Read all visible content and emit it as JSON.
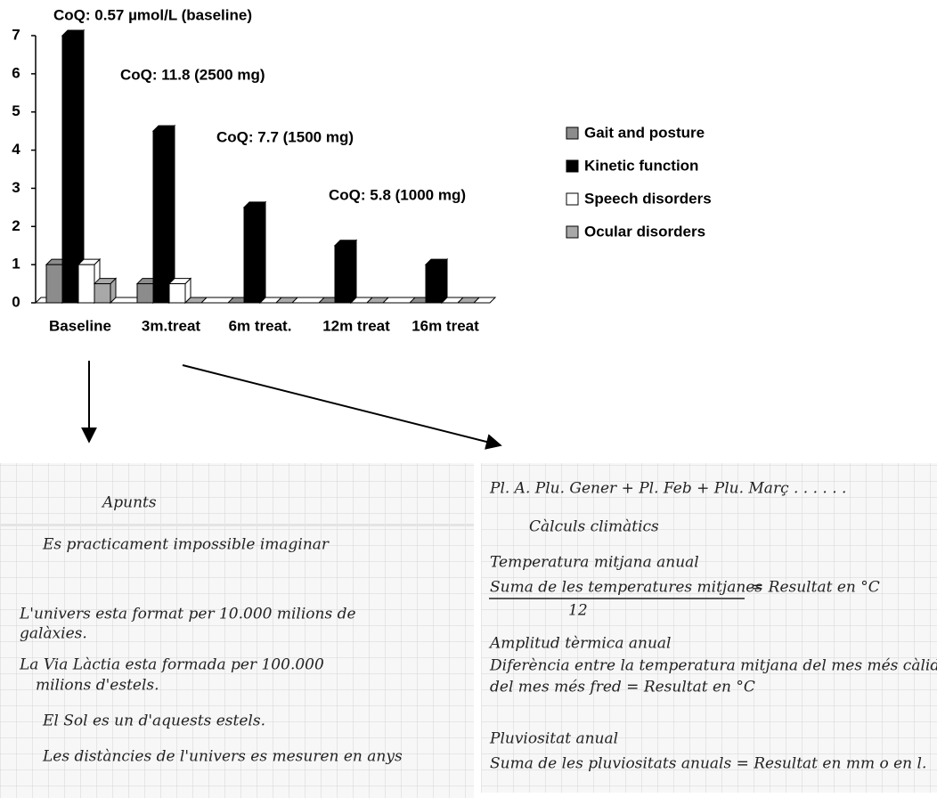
{
  "chart_data": {
    "type": "bar",
    "categories": [
      "Baseline",
      "3m.treat",
      "6m treat.",
      "12m treat",
      "16m treat"
    ],
    "series": [
      {
        "name": "Gait and posture",
        "color": "#8c8c8c",
        "values": [
          1,
          0.5,
          0,
          0,
          0
        ]
      },
      {
        "name": "Kinetic function",
        "color": "#000000",
        "values": [
          7,
          4.5,
          2.5,
          1.5,
          1
        ]
      },
      {
        "name": "Speech disorders",
        "color": "#ffffff",
        "values": [
          1,
          0.5,
          0,
          0,
          0
        ]
      },
      {
        "name": "Ocular disorders",
        "color": "#a8a8a8",
        "values": [
          0.5,
          0,
          0,
          0,
          0
        ]
      }
    ],
    "ylim": [
      0,
      7
    ],
    "yticks": [
      0,
      1,
      2,
      3,
      4,
      5,
      6,
      7
    ],
    "annotations": [
      "CoQ: 0.57 µmol/L (baseline)",
      "CoQ: 11.8 (2500 mg)",
      "CoQ: 7.7 (1500 mg)",
      "CoQ: 5.8 (1000 mg)"
    ],
    "legend": "right"
  },
  "notes": {
    "left": [
      "Apunts",
      "Es practicament impossible imaginar",
      "L'univers esta format per 10.000 milions de",
      "galàxies.",
      "La Via Làctia esta formada per 100.000",
      "milions d'estels.",
      "El Sol es un d'aquests estels.",
      "Les distàncies de l'univers es mesuren en anys"
    ],
    "right": [
      "Pl. A. Plu. Gener + Pl. Feb + Plu. Març . . . . . .",
      "Càlculs climàtics",
      "Temperatura mitjana anual",
      "Suma de les temperatures mitjanes",
      "= Resultat en °C",
      "12",
      "Amplitud tèrmica anual",
      "Diferència entre la temperatura mitjana del mes més càlid i",
      "del mes més fred = Resultat en °C",
      "Pluviositat anual",
      "Suma de les pluviositats anuals = Resultat en mm o en l."
    ]
  }
}
